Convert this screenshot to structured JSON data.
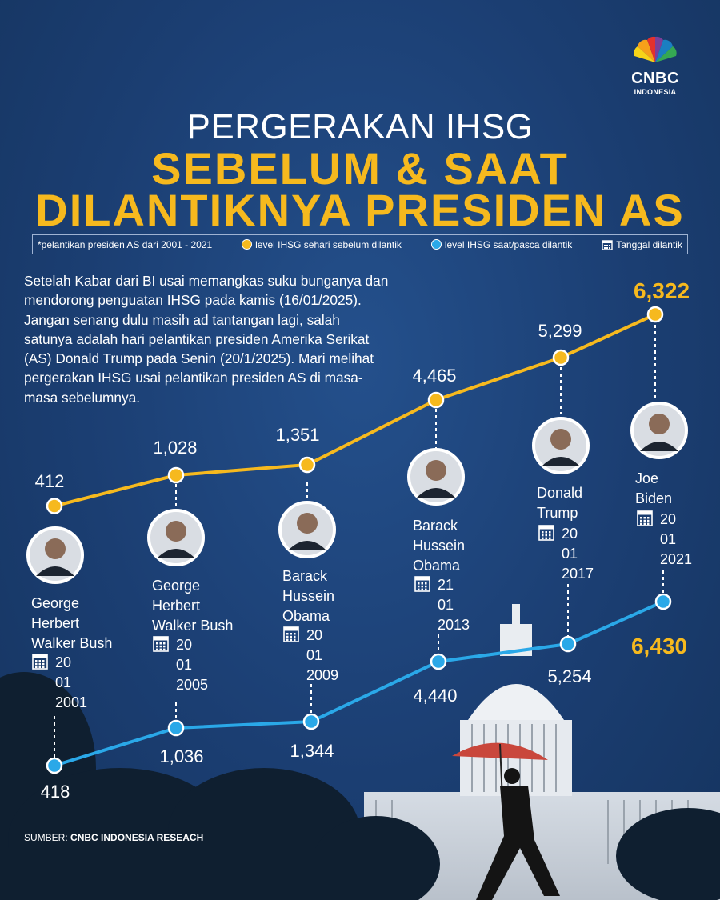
{
  "brand": {
    "name": "CNBC",
    "sub": "INDONESIA"
  },
  "title": {
    "line1": "PERGERAKAN IHSG",
    "line2": "SEBELUM & SAAT",
    "line3": "DILANTIKNYA PRESIDEN AS"
  },
  "legend": {
    "note": "*pelantikan presiden AS dari 2001 - 2021",
    "before": "level IHSG sehari sebelum dilantik",
    "after": "level IHSG saat/pasca dilantik",
    "date": "Tanggal dilantik"
  },
  "intro": "Setelah Kabar dari BI usai memangkas suku bunganya dan mendorong penguatan IHSG pada kamis (16/01/2025). Jangan senang dulu masih ad tantangan lagi, salah satunya adalah hari pelantikan presiden Amerika Serikat (AS) Donald Trump pada Senin (20/1/2025). Mari melihat pergerakan IHSG usai pelantikan presiden AS di masa-masa sebelumnya.",
  "source": {
    "label": "SUMBER:",
    "value": "CNBC INDONESIA RESEACH"
  },
  "colors": {
    "background": "#1d4175",
    "before": "#f6b91e",
    "after": "#2aa8e8",
    "accent": "#f6b91e"
  },
  "chart_data": {
    "type": "line",
    "categories": [
      "20 01 2001",
      "20 01 2005",
      "20 01 2009",
      "21 01 2013",
      "20 01 2017",
      "20 01 2021"
    ],
    "presidents": [
      {
        "name_lines": [
          "George",
          "Herbert",
          "Walker Bush"
        ],
        "date_lines": [
          "20",
          "01",
          "2001"
        ]
      },
      {
        "name_lines": [
          "George",
          "Herbert",
          "Walker Bush"
        ],
        "date_lines": [
          "20",
          "01",
          "2005"
        ]
      },
      {
        "name_lines": [
          "Barack",
          "Hussein",
          "Obama"
        ],
        "date_lines": [
          "20",
          "01",
          "2009"
        ]
      },
      {
        "name_lines": [
          "Barack",
          "Hussein",
          "Obama"
        ],
        "date_lines": [
          "21",
          "01",
          "2013"
        ]
      },
      {
        "name_lines": [
          "Donald",
          "Trump"
        ],
        "date_lines": [
          "20",
          "01",
          "2017"
        ]
      },
      {
        "name_lines": [
          "Joe",
          "Biden"
        ],
        "date_lines": [
          "20",
          "01",
          "2021"
        ]
      }
    ],
    "series": [
      {
        "key": "before",
        "values": [
          412,
          1028,
          1351,
          4465,
          5299,
          6322
        ],
        "labels": [
          "412",
          "1,028",
          "1,351",
          "4,465",
          "5,299",
          "6,322"
        ]
      },
      {
        "key": "after",
        "values": [
          418,
          1036,
          1344,
          4440,
          5254,
          6430
        ],
        "labels": [
          "418",
          "1,036",
          "1,344",
          "4,440",
          "5,254",
          "6,430"
        ]
      }
    ]
  }
}
